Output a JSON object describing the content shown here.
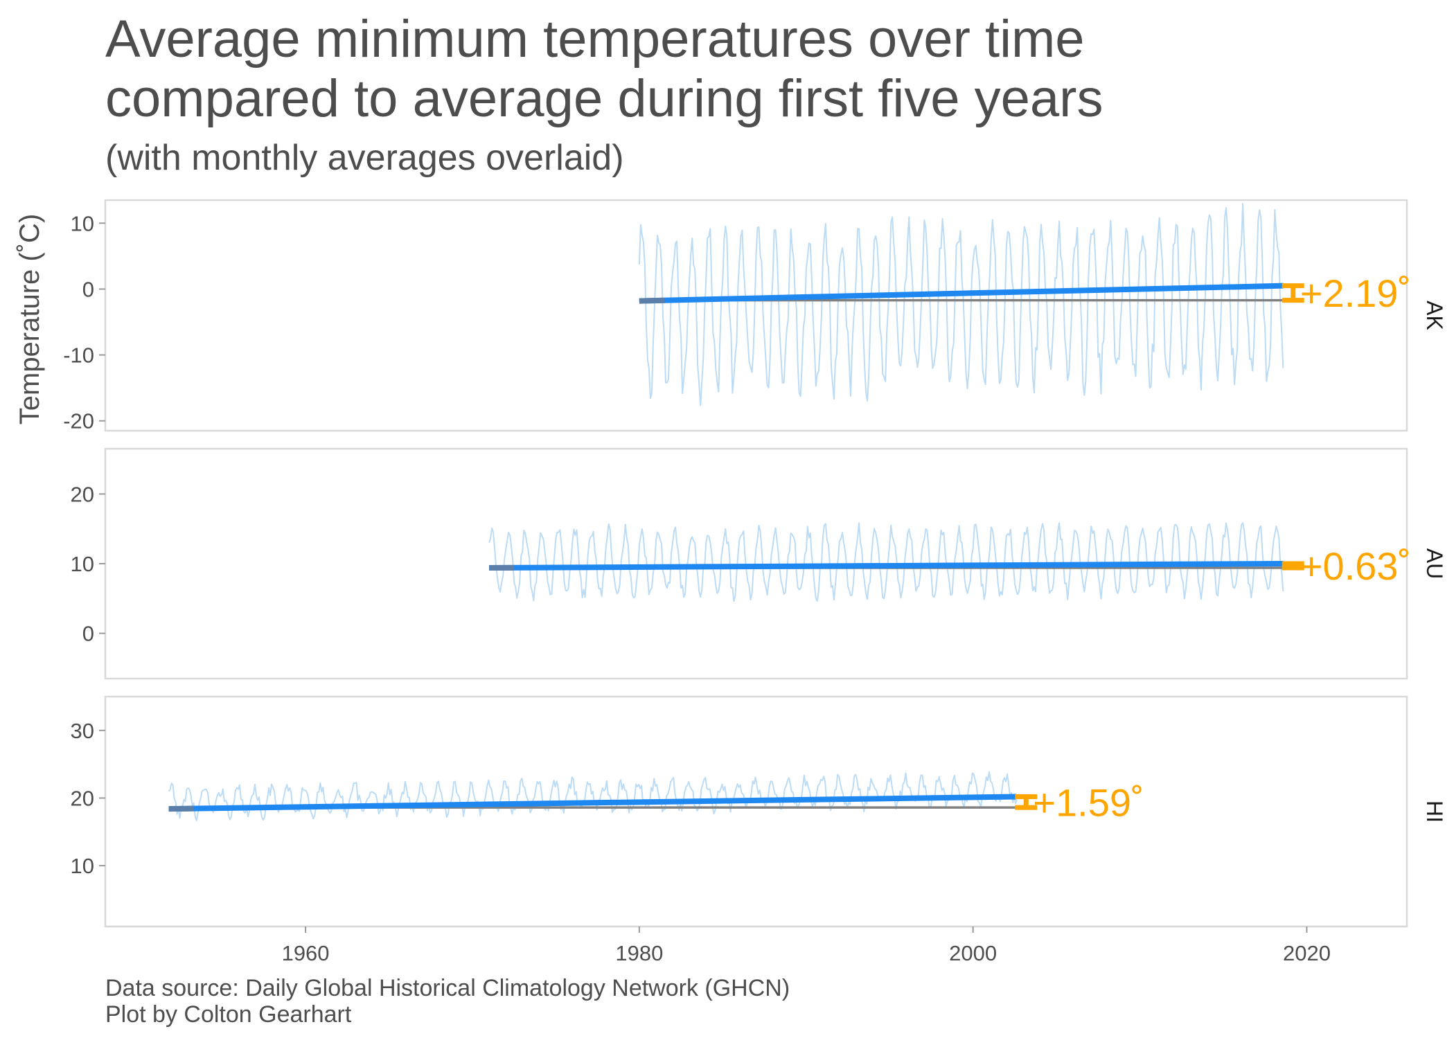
{
  "chart_data": {
    "type": "line",
    "title": "Average minimum temperatures over time",
    "title_line2": "compared to average during first five years",
    "subtitle": "(with monthly averages overlaid)",
    "ylabel": "Temperature (˚C)",
    "xlabel": "",
    "xlim": [
      1948,
      2026
    ],
    "x_ticks": [
      1960,
      1980,
      2000,
      2020
    ],
    "grid": false,
    "colors": {
      "monthly": "#bcdcf5",
      "trend": "#1e88f0",
      "baseline": "#808080",
      "change": "#ffa500",
      "panel_border": "#d9d9d9",
      "text": "#4d4d4d"
    },
    "panels": [
      {
        "strip_label": "AK",
        "ylim": [
          -21.5,
          13.5
        ],
        "y_ticks": [
          10,
          0,
          -10,
          -20
        ],
        "x_start": 1980.0,
        "x_end": 2018.6,
        "baseline": -1.7,
        "trend_start": -1.8,
        "trend_end": 0.5,
        "change_label": "+2.19˚",
        "monthly_center": -3.5,
        "monthly_amplitude": 11.5,
        "monthly_noise": 3.0
      },
      {
        "strip_label": "AU",
        "ylim": [
          -6.5,
          26.5
        ],
        "y_ticks": [
          20,
          10,
          0
        ],
        "x_start": 1971.0,
        "x_end": 2018.6,
        "baseline": 9.4,
        "trend_start": 9.4,
        "trend_end": 10.0,
        "change_label": "+0.63˚",
        "monthly_center": 10.0,
        "monthly_amplitude": 4.6,
        "monthly_noise": 1.1
      },
      {
        "strip_label": "HI",
        "ylim": [
          1,
          35
        ],
        "y_ticks": [
          30,
          20,
          10
        ],
        "x_start": 1951.8,
        "x_end": 2002.6,
        "baseline": 18.6,
        "trend_start": 18.4,
        "trend_end": 20.2,
        "change_label": "+1.59˚",
        "monthly_center": 19.4,
        "monthly_amplitude": 1.9,
        "monthly_noise": 1.0
      }
    ]
  },
  "caption": {
    "line1": "Data source: Daily Global Historical Climatology Network (GHCN)",
    "line2": "Plot by Colton Gearhart"
  }
}
